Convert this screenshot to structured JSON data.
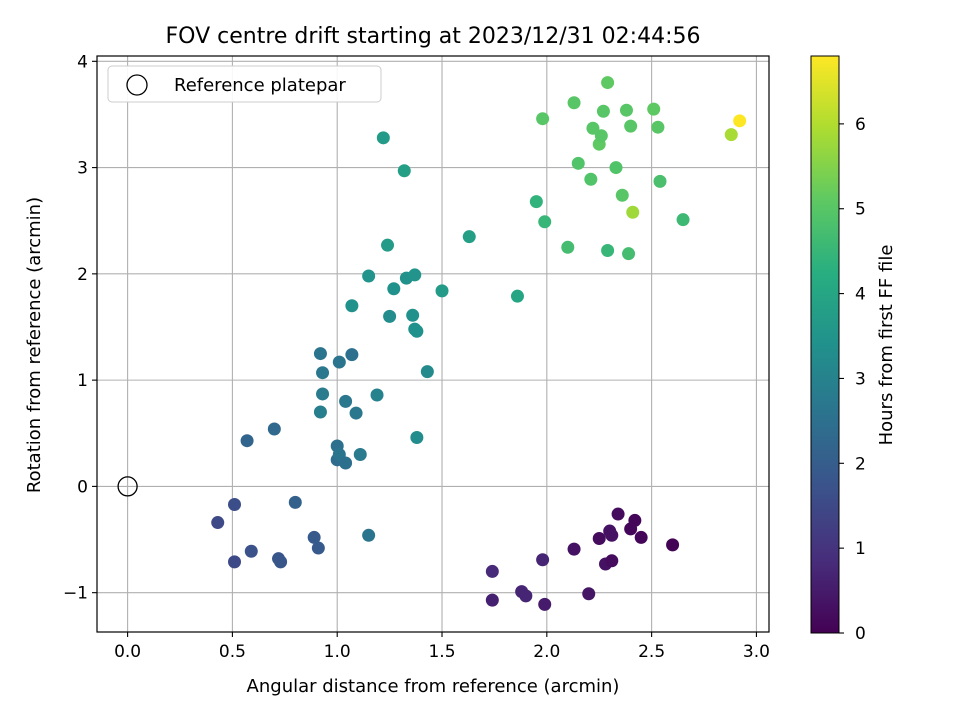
{
  "chart_data": {
    "type": "scatter",
    "title": "FOV centre drift starting at 2023/12/31 02:44:56",
    "xlabel": "Angular distance from reference (arcmin)",
    "ylabel": "Rotation from reference (arcmin)",
    "xlim": [
      -0.146,
      3.06
    ],
    "ylim": [
      -1.37,
      4.05
    ],
    "x_ticks": [
      0.0,
      0.5,
      1.0,
      1.5,
      2.0,
      2.5,
      3.0
    ],
    "x_tick_labels": [
      "0.0",
      "0.5",
      "1.0",
      "1.5",
      "2.0",
      "2.5",
      "3.0"
    ],
    "y_ticks": [
      -1,
      0,
      1,
      2,
      3,
      4
    ],
    "y_tick_labels": [
      "−1",
      "0",
      "1",
      "2",
      "3",
      "4"
    ],
    "grid": true,
    "legend": {
      "position": "top-left",
      "entries": [
        {
          "label": "Reference platepar",
          "marker": "open-circle"
        }
      ]
    },
    "reference_point": {
      "x": 0.0,
      "y": 0.0
    },
    "colorbar": {
      "label": "Hours from first FF file",
      "colormap": "viridis",
      "range": [
        0,
        6.8
      ],
      "ticks": [
        0,
        1,
        2,
        3,
        4,
        5,
        6
      ],
      "tick_labels": [
        "0",
        "1",
        "2",
        "3",
        "4",
        "5",
        "6"
      ]
    },
    "series": [
      {
        "points": [
          {
            "x": 1.74,
            "y": -0.8,
            "c": 0.8
          },
          {
            "x": 1.74,
            "y": -1.07,
            "c": 0.6
          },
          {
            "x": 1.88,
            "y": -0.99,
            "c": 0.7
          },
          {
            "x": 1.9,
            "y": -1.03,
            "c": 0.7
          },
          {
            "x": 1.98,
            "y": -0.69,
            "c": 0.7
          },
          {
            "x": 1.99,
            "y": -1.11,
            "c": 0.5
          },
          {
            "x": 2.13,
            "y": -0.59,
            "c": 0.3
          },
          {
            "x": 2.2,
            "y": -1.01,
            "c": 0.4
          },
          {
            "x": 2.25,
            "y": -0.49,
            "c": 0.2
          },
          {
            "x": 2.28,
            "y": -0.73,
            "c": 0.3
          },
          {
            "x": 2.3,
            "y": -0.42,
            "c": 0.3
          },
          {
            "x": 2.31,
            "y": -0.46,
            "c": 0.3
          },
          {
            "x": 2.31,
            "y": -0.7,
            "c": 0.2
          },
          {
            "x": 2.34,
            "y": -0.26,
            "c": 0.2
          },
          {
            "x": 2.4,
            "y": -0.4,
            "c": 0.1
          },
          {
            "x": 2.42,
            "y": -0.32,
            "c": 0.1
          },
          {
            "x": 2.45,
            "y": -0.48,
            "c": 0.1
          },
          {
            "x": 2.6,
            "y": -0.55,
            "c": 0.05
          },
          {
            "x": 0.43,
            "y": -0.34,
            "c": 1.5
          },
          {
            "x": 0.51,
            "y": -0.17,
            "c": 1.6
          },
          {
            "x": 0.51,
            "y": -0.71,
            "c": 1.5
          },
          {
            "x": 0.59,
            "y": -0.61,
            "c": 1.7
          },
          {
            "x": 0.72,
            "y": -0.68,
            "c": 1.8
          },
          {
            "x": 0.73,
            "y": -0.71,
            "c": 1.8
          },
          {
            "x": 0.8,
            "y": -0.15,
            "c": 2.1
          },
          {
            "x": 0.89,
            "y": -0.48,
            "c": 1.9
          },
          {
            "x": 0.91,
            "y": -0.58,
            "c": 1.9
          },
          {
            "x": 1.15,
            "y": -0.46,
            "c": 2.6
          },
          {
            "x": 0.57,
            "y": 0.43,
            "c": 2.2
          },
          {
            "x": 0.7,
            "y": 0.54,
            "c": 2.3
          },
          {
            "x": 0.92,
            "y": 1.25,
            "c": 2.6
          },
          {
            "x": 0.93,
            "y": 1.07,
            "c": 2.7
          },
          {
            "x": 0.93,
            "y": 0.87,
            "c": 2.8
          },
          {
            "x": 0.92,
            "y": 0.7,
            "c": 2.9
          },
          {
            "x": 1.0,
            "y": 0.38,
            "c": 2.5
          },
          {
            "x": 1.0,
            "y": 0.25,
            "c": 2.4
          },
          {
            "x": 1.01,
            "y": 0.3,
            "c": 2.6
          },
          {
            "x": 1.04,
            "y": 0.22,
            "c": 2.5
          },
          {
            "x": 1.01,
            "y": 1.17,
            "c": 2.6
          },
          {
            "x": 1.07,
            "y": 1.24,
            "c": 2.5
          },
          {
            "x": 1.04,
            "y": 0.8,
            "c": 2.7
          },
          {
            "x": 1.09,
            "y": 0.69,
            "c": 2.7
          },
          {
            "x": 1.11,
            "y": 0.3,
            "c": 2.8
          },
          {
            "x": 1.19,
            "y": 0.86,
            "c": 3.0
          },
          {
            "x": 1.38,
            "y": 0.46,
            "c": 3.3
          },
          {
            "x": 1.43,
            "y": 1.08,
            "c": 3.2
          },
          {
            "x": 1.07,
            "y": 1.7,
            "c": 3.4
          },
          {
            "x": 1.15,
            "y": 1.98,
            "c": 3.5
          },
          {
            "x": 1.25,
            "y": 1.6,
            "c": 3.3
          },
          {
            "x": 1.27,
            "y": 1.86,
            "c": 3.4
          },
          {
            "x": 1.33,
            "y": 1.96,
            "c": 3.4
          },
          {
            "x": 1.36,
            "y": 1.61,
            "c": 3.4
          },
          {
            "x": 1.37,
            "y": 1.99,
            "c": 3.5
          },
          {
            "x": 1.37,
            "y": 1.48,
            "c": 3.4
          },
          {
            "x": 1.38,
            "y": 1.46,
            "c": 3.4
          },
          {
            "x": 1.5,
            "y": 1.84,
            "c": 3.7
          },
          {
            "x": 1.24,
            "y": 2.27,
            "c": 3.7
          },
          {
            "x": 1.63,
            "y": 2.35,
            "c": 3.8
          },
          {
            "x": 1.86,
            "y": 1.79,
            "c": 4.0
          },
          {
            "x": 1.22,
            "y": 3.28,
            "c": 3.7
          },
          {
            "x": 1.32,
            "y": 2.97,
            "c": 3.8
          },
          {
            "x": 1.95,
            "y": 2.68,
            "c": 4.4
          },
          {
            "x": 1.99,
            "y": 2.49,
            "c": 4.5
          },
          {
            "x": 2.1,
            "y": 2.25,
            "c": 4.7
          },
          {
            "x": 2.29,
            "y": 2.22,
            "c": 4.5
          },
          {
            "x": 2.39,
            "y": 2.19,
            "c": 4.7
          },
          {
            "x": 2.15,
            "y": 3.04,
            "c": 4.9
          },
          {
            "x": 2.21,
            "y": 2.89,
            "c": 4.9
          },
          {
            "x": 2.33,
            "y": 3.0,
            "c": 4.9
          },
          {
            "x": 2.36,
            "y": 2.74,
            "c": 5.0
          },
          {
            "x": 2.54,
            "y": 2.87,
            "c": 4.8
          },
          {
            "x": 2.65,
            "y": 2.51,
            "c": 4.6
          },
          {
            "x": 1.98,
            "y": 3.46,
            "c": 5.0
          },
          {
            "x": 2.13,
            "y": 3.61,
            "c": 5.0
          },
          {
            "x": 2.22,
            "y": 3.37,
            "c": 5.0
          },
          {
            "x": 2.25,
            "y": 3.22,
            "c": 5.1
          },
          {
            "x": 2.26,
            "y": 3.3,
            "c": 5.0
          },
          {
            "x": 2.27,
            "y": 3.53,
            "c": 5.0
          },
          {
            "x": 2.29,
            "y": 3.8,
            "c": 5.1
          },
          {
            "x": 2.38,
            "y": 3.54,
            "c": 5.0
          },
          {
            "x": 2.4,
            "y": 3.39,
            "c": 5.0
          },
          {
            "x": 2.51,
            "y": 3.55,
            "c": 5.1
          },
          {
            "x": 2.53,
            "y": 3.38,
            "c": 5.0
          },
          {
            "x": 2.41,
            "y": 2.58,
            "c": 5.8
          },
          {
            "x": 2.88,
            "y": 3.31,
            "c": 5.9
          },
          {
            "x": 2.92,
            "y": 3.44,
            "c": 6.8
          }
        ]
      }
    ]
  }
}
